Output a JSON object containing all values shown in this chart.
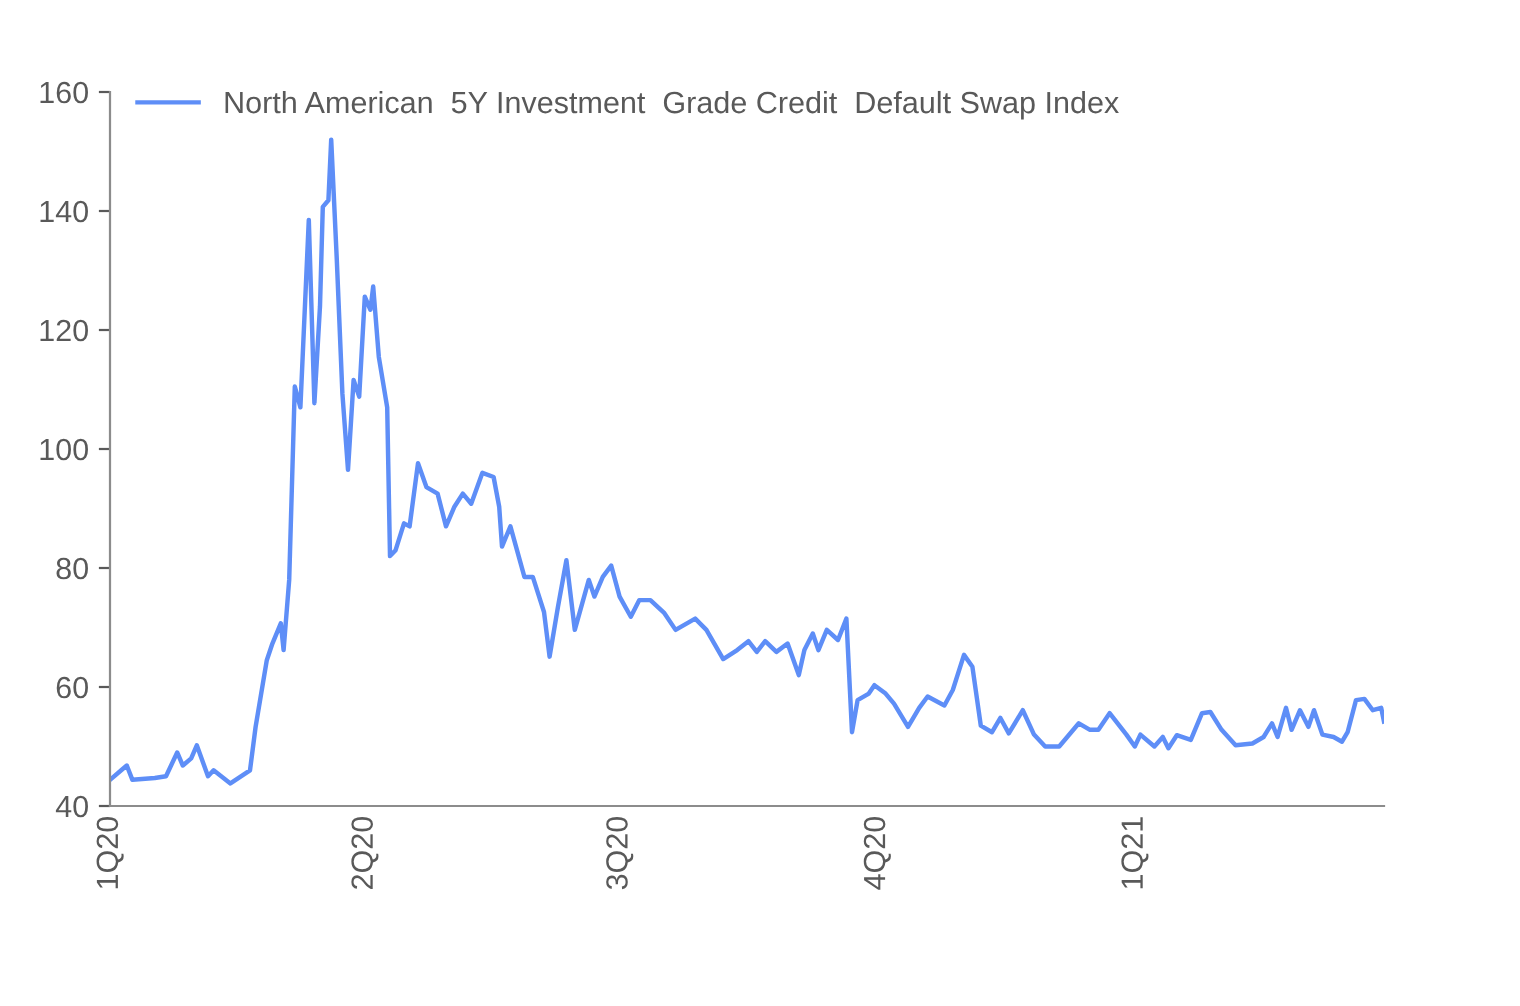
{
  "chart_data": {
    "type": "line",
    "x": [
      "2020-01-01",
      "2020-01-05",
      "2020-01-07",
      "2020-01-09",
      "2020-01-17",
      "2020-01-21",
      "2020-01-25",
      "2020-01-27",
      "2020-01-30",
      "2020-02-01",
      "2020-02-05",
      "2020-02-07",
      "2020-02-13",
      "2020-02-20",
      "2020-02-22",
      "2020-02-26",
      "2020-02-28",
      "2020-03-02",
      "2020-03-03",
      "2020-03-05",
      "2020-03-07",
      "2020-03-09",
      "2020-03-12",
      "2020-03-14",
      "2020-03-16",
      "2020-03-17",
      "2020-03-19",
      "2020-03-20",
      "2020-03-22",
      "2020-03-24",
      "2020-03-26",
      "2020-03-28",
      "2020-03-30",
      "2020-04-01",
      "2020-04-03",
      "2020-04-04",
      "2020-04-06",
      "2020-04-09",
      "2020-04-10",
      "2020-04-12",
      "2020-04-15",
      "2020-04-17",
      "2020-04-20",
      "2020-04-23",
      "2020-04-27",
      "2020-04-30",
      "2020-05-03",
      "2020-05-06",
      "2020-05-09",
      "2020-05-13",
      "2020-05-17",
      "2020-05-19",
      "2020-05-20",
      "2020-05-23",
      "2020-05-28",
      "2020-05-31",
      "2020-06-04",
      "2020-06-06",
      "2020-06-09",
      "2020-06-12",
      "2020-06-15",
      "2020-06-20",
      "2020-06-22",
      "2020-06-25",
      "2020-06-28",
      "2020-07-01",
      "2020-07-05",
      "2020-07-08",
      "2020-07-12",
      "2020-07-17",
      "2020-07-21",
      "2020-07-28",
      "2020-08-01",
      "2020-08-07",
      "2020-08-12",
      "2020-08-16",
      "2020-08-19",
      "2020-08-22",
      "2020-08-26",
      "2020-08-30",
      "2020-09-03",
      "2020-09-05",
      "2020-09-08",
      "2020-09-10",
      "2020-09-13",
      "2020-09-17",
      "2020-09-20",
      "2020-09-22",
      "2020-09-24",
      "2020-09-28",
      "2020-09-30",
      "2020-10-04",
      "2020-10-07",
      "2020-10-12",
      "2020-10-16",
      "2020-10-19",
      "2020-10-25",
      "2020-10-28",
      "2020-11-01",
      "2020-11-04",
      "2020-11-07",
      "2020-11-11",
      "2020-11-14",
      "2020-11-17",
      "2020-11-22",
      "2020-11-26",
      "2020-11-30",
      "2020-12-05",
      "2020-12-12",
      "2020-12-16",
      "2020-12-19",
      "2020-12-23",
      "2020-12-29",
      "2021-01-01",
      "2021-01-03",
      "2021-01-08",
      "2021-01-11",
      "2021-01-13",
      "2021-01-16",
      "2021-01-21",
      "2021-01-25",
      "2021-01-28",
      "2021-02-01",
      "2021-02-06",
      "2021-02-12",
      "2021-02-16",
      "2021-02-19",
      "2021-02-21",
      "2021-02-24",
      "2021-02-26",
      "2021-03-01",
      "2021-03-04",
      "2021-03-06",
      "2021-03-09",
      "2021-03-13",
      "2021-03-16",
      "2021-03-18",
      "2021-03-21",
      "2021-03-24",
      "2021-03-27",
      "2021-03-30",
      "2021-03-31"
    ],
    "series": [
      {
        "name": "North American  5Y Investment  Grade Credit  Default Swap Index",
        "color": "#5e8ef7",
        "values": [
          44.4,
          46,
          46.8,
          44.4,
          44.7,
          45,
          49,
          46.8,
          48,
          50.2,
          45,
          46,
          43.8,
          46,
          53.3,
          64.5,
          67.3,
          70.7,
          66.2,
          78,
          110.5,
          107,
          138.5,
          107.7,
          124,
          140.7,
          141.8,
          152,
          131.8,
          109.3,
          96.5,
          111.6,
          108.8,
          125.6,
          123.4,
          127.3,
          115.5,
          107,
          82,
          83,
          87.5,
          87,
          97.6,
          93.6,
          92.5,
          87,
          90.3,
          92.5,
          90.8,
          96,
          95.3,
          90.3,
          83.6,
          87,
          78.5,
          78.5,
          72.6,
          65.1,
          73.5,
          81.3,
          69.6,
          78,
          75.2,
          78.5,
          80.4,
          75.2,
          71.8,
          74.6,
          74.6,
          72.4,
          69.6,
          71.5,
          69.6,
          64.7,
          66.2,
          67.7,
          65.9,
          67.7,
          65.9,
          67.3,
          62,
          66.2,
          69,
          66.2,
          69.6,
          67.9,
          71.5,
          52.4,
          57.8,
          58.9,
          60.3,
          58.9,
          57.2,
          53.3,
          56.5,
          58.4,
          56.9,
          59.5,
          65.4,
          63.4,
          53.5,
          52.4,
          54.8,
          52.2,
          56.1,
          52,
          50,
          50,
          53.9,
          52.8,
          52.8,
          55.6,
          52,
          50,
          52,
          50,
          51.6,
          49.7,
          51.9,
          51.1,
          55.6,
          55.8,
          52.8,
          50.2,
          50.5,
          51.6,
          53.9,
          51.6,
          56.5,
          52.8,
          56.1,
          53.3,
          56.1,
          52,
          51.6,
          50.8,
          52.4,
          57.8,
          58,
          56.1,
          56.5,
          54.2
        ]
      }
    ],
    "xlim": [
      "2020-01-01",
      "2021-03-31"
    ],
    "xticks": [
      {
        "value": "2020-01-01",
        "label": "1Q20"
      },
      {
        "value": "2020-04-01",
        "label": "2Q20"
      },
      {
        "value": "2020-07-01",
        "label": "3Q20"
      },
      {
        "value": "2020-10-01",
        "label": "4Q20"
      },
      {
        "value": "2021-01-01",
        "label": "1Q21"
      }
    ],
    "ylim": [
      40,
      160
    ],
    "yticks": [
      40,
      60,
      80,
      100,
      120,
      140,
      160
    ],
    "legend": "top left",
    "grid": false,
    "line_style": "solid",
    "marker": "none"
  }
}
